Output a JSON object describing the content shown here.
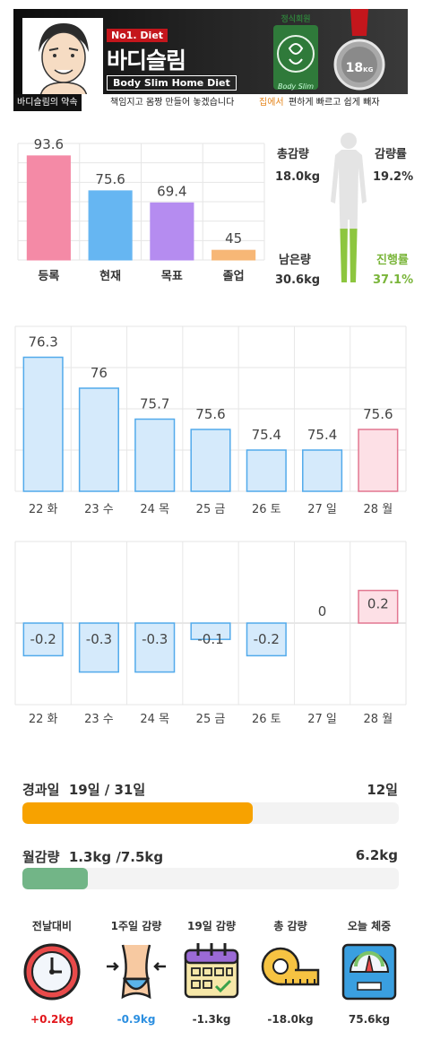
{
  "banner": {
    "badge": "No1. Diet",
    "title": "바디슬림",
    "subtitle": "Body Slim Home Diet",
    "seal_label": "정식회원",
    "seal_script": "Body Slim",
    "medal_value": "18",
    "medal_unit": "KG",
    "promise_label": "바디슬림의 약속",
    "promise_text": "책임지고 몸짱 만들어 놓겠습니다",
    "promise_highlight": "집에서",
    "promise_tail": "편하게 빠르고 쉽게 빼자"
  },
  "summary": {
    "total_loss_label": "총감량",
    "total_loss_value": "18.0kg",
    "loss_rate_label": "감량률",
    "loss_rate_value": "19.2%",
    "remaining_label": "남은량",
    "remaining_value": "30.6kg",
    "progress_label": "진행률",
    "progress_value": "37.1%",
    "progress_fraction": 0.371
  },
  "colors": {
    "pink": "#f48aa6",
    "blue": "#66b6f2",
    "purple": "#b58cf0",
    "orange": "#f7b776",
    "light_blue": "#d5eafb",
    "light_blue_stroke": "#52aaeb",
    "light_pink": "#fde0e6",
    "light_pink_stroke": "#e27791",
    "orange_fill": "#f7a200",
    "green_fill": "#72b587",
    "body_green": "#8dc63f"
  },
  "chart_data": [
    {
      "type": "bar",
      "categories": [
        "등록",
        "현재",
        "목표",
        "졸업"
      ],
      "values": [
        93.6,
        75.6,
        69.4,
        45
      ],
      "ylim": [
        40,
        100
      ]
    },
    {
      "type": "bar",
      "categories": [
        "22 화",
        "23 수",
        "24 목",
        "25 금",
        "26 토",
        "27 일",
        "28 월"
      ],
      "values": [
        76.3,
        76,
        75.7,
        75.6,
        75.4,
        75.4,
        75.6
      ],
      "ylim": [
        75,
        76.6
      ]
    },
    {
      "type": "bar",
      "categories": [
        "22 화",
        "23 수",
        "24 목",
        "25 금",
        "26 토",
        "27 일",
        "28 월"
      ],
      "values": [
        -0.2,
        -0.3,
        -0.3,
        -0.1,
        -0.2,
        0,
        0.2
      ],
      "labels": [
        "-0.2",
        "-0.3",
        "-0.3",
        "-0.1",
        "-0.2",
        "0",
        "0.2"
      ],
      "ylim": [
        -0.5,
        0.5
      ]
    }
  ],
  "progress": {
    "elapsed": {
      "label": "경과일",
      "value": "19일 / 31일",
      "right": "12일",
      "fraction": 0.613
    },
    "monthly": {
      "label": "월감량",
      "value": "1.3kg  /7.5kg",
      "right": "6.2kg",
      "fraction": 0.173
    }
  },
  "icons": [
    {
      "title": "전날대비",
      "icon": "clock-icon",
      "value": "+0.2kg",
      "tone": "red"
    },
    {
      "title": "1주일 감량",
      "icon": "waist-icon",
      "value": "-0.9kg",
      "tone": "blue"
    },
    {
      "title": "19일 감량",
      "icon": "calendar-icon",
      "value": "-1.3kg",
      "tone": ""
    },
    {
      "title": "총 감량",
      "icon": "tape-measure-icon",
      "value": "-18.0kg",
      "tone": ""
    },
    {
      "title": "오늘 체중",
      "icon": "scale-icon",
      "value": "75.6kg",
      "tone": ""
    }
  ]
}
